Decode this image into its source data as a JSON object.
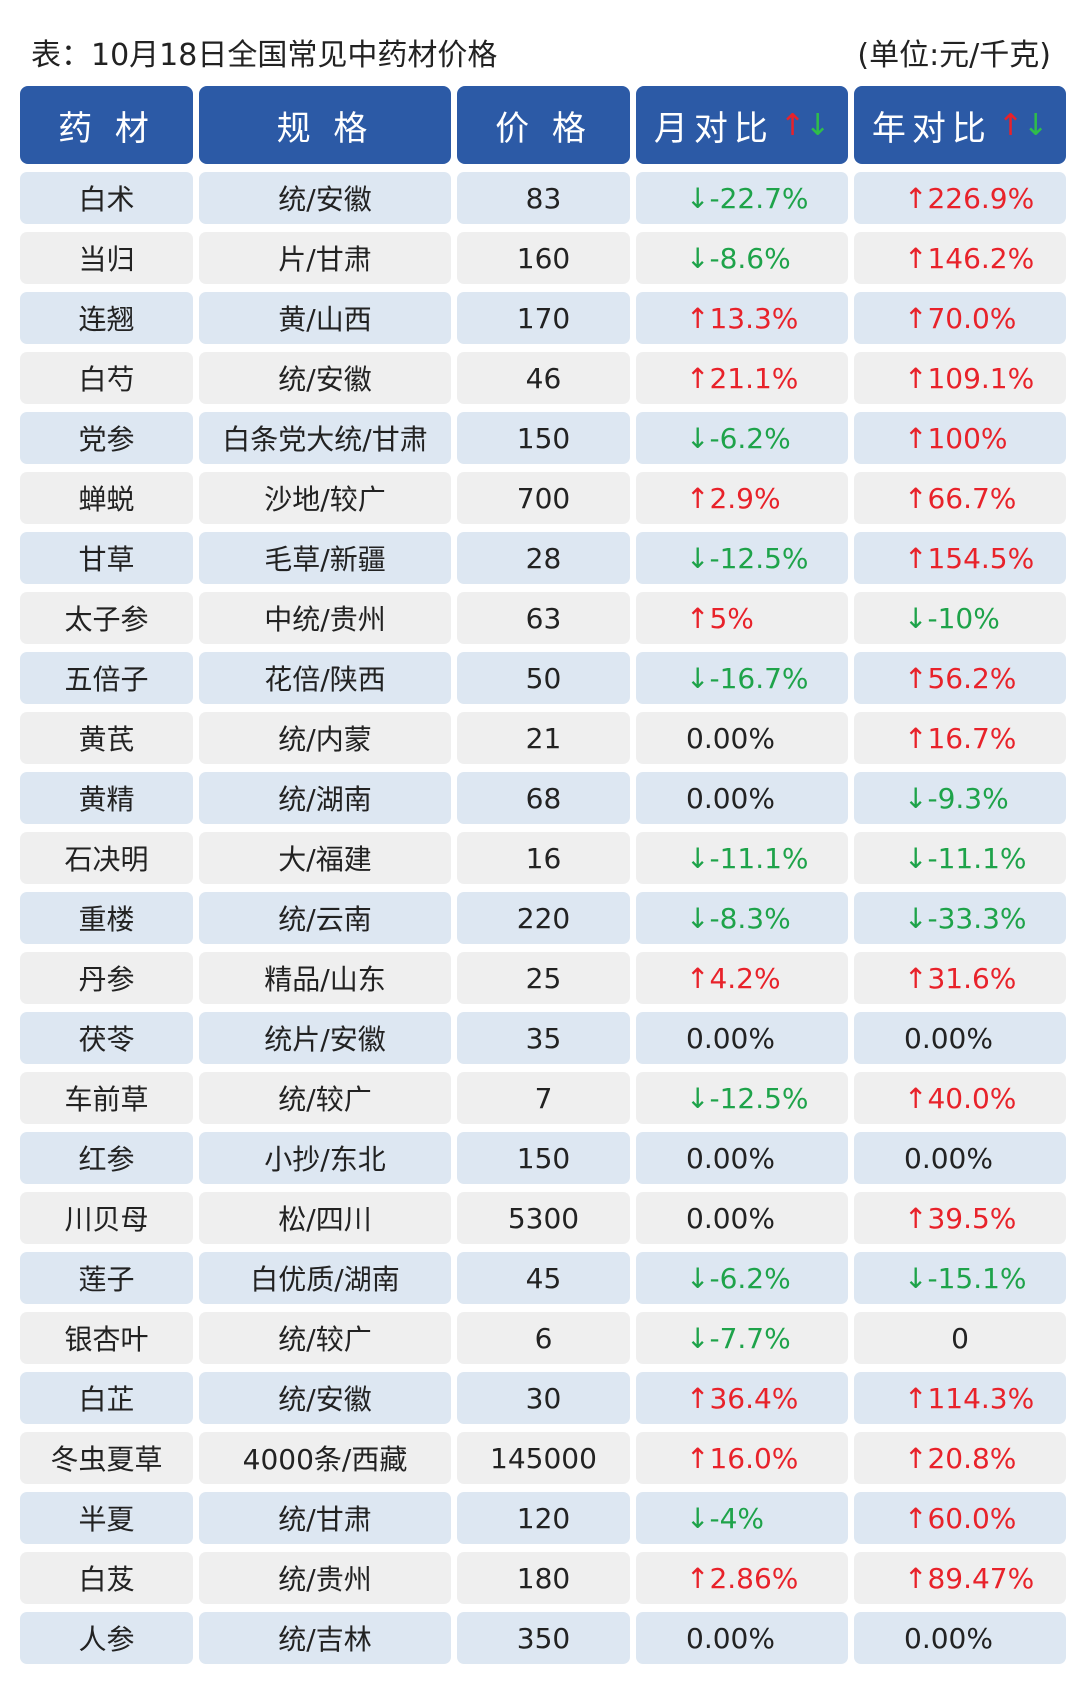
{
  "caption": {
    "title": "表：10月18日全国常见中药材价格",
    "unit": "(单位:元/千克)"
  },
  "headers": {
    "name": "药 材",
    "spec": "规 格",
    "price": "价 格",
    "month": "月对比",
    "year": "年对比",
    "up_arrow": "↑",
    "down_arrow": "↓"
  },
  "colors": {
    "header_bg": "#2c5aa6",
    "row_blue": "#dde7f2",
    "row_grey": "#efefef",
    "up": "#e8222a",
    "down": "#1ea34a"
  },
  "rows": [
    {
      "name": "白术",
      "spec": "统/安徽",
      "price": "83",
      "month": "↓-22.7%",
      "month_dir": "down",
      "year": "↑226.9%",
      "year_dir": "up"
    },
    {
      "name": "当归",
      "spec": "片/甘肃",
      "price": "160",
      "month": "↓-8.6%",
      "month_dir": "down",
      "year": "↑146.2%",
      "year_dir": "up"
    },
    {
      "name": "连翘",
      "spec": "黄/山西",
      "price": "170",
      "month": "↑13.3%",
      "month_dir": "up",
      "year": "↑70.0%",
      "year_dir": "up"
    },
    {
      "name": "白芍",
      "spec": "统/安徽",
      "price": "46",
      "month": "↑21.1%",
      "month_dir": "up",
      "year": "↑109.1%",
      "year_dir": "up"
    },
    {
      "name": "党参",
      "spec": "白条党大统/甘肃",
      "price": "150",
      "month": "↓-6.2%",
      "month_dir": "down",
      "year": "↑100%",
      "year_dir": "up"
    },
    {
      "name": "蝉蜕",
      "spec": "沙地/较广",
      "price": "700",
      "month": "↑2.9%",
      "month_dir": "up",
      "year": "↑66.7%",
      "year_dir": "up"
    },
    {
      "name": "甘草",
      "spec": "毛草/新疆",
      "price": "28",
      "month": "↓-12.5%",
      "month_dir": "down",
      "year": "↑154.5%",
      "year_dir": "up"
    },
    {
      "name": "太子参",
      "spec": "中统/贵州",
      "price": "63",
      "month": "↑5%",
      "month_dir": "up",
      "year": "↓-10%",
      "year_dir": "down"
    },
    {
      "name": "五倍子",
      "spec": "花倍/陕西",
      "price": "50",
      "month": "↓-16.7%",
      "month_dir": "down",
      "year": "↑56.2%",
      "year_dir": "up"
    },
    {
      "name": "黄芪",
      "spec": "统/内蒙",
      "price": "21",
      "month": "0.00%",
      "month_dir": "flat",
      "year": "↑16.7%",
      "year_dir": "up"
    },
    {
      "name": "黄精",
      "spec": "统/湖南",
      "price": "68",
      "month": "0.00%",
      "month_dir": "flat",
      "year": "↓-9.3%",
      "year_dir": "down"
    },
    {
      "name": "石决明",
      "spec": "大/福建",
      "price": "16",
      "month": "↓-11.1%",
      "month_dir": "down",
      "year": "↓-11.1%",
      "year_dir": "down"
    },
    {
      "name": "重楼",
      "spec": "统/云南",
      "price": "220",
      "month": "↓-8.3%",
      "month_dir": "down",
      "year": "↓-33.3%",
      "year_dir": "down"
    },
    {
      "name": "丹参",
      "spec": "精品/山东",
      "price": "25",
      "month": "↑4.2%",
      "month_dir": "up",
      "year": "↑31.6%",
      "year_dir": "up"
    },
    {
      "name": "茯苓",
      "spec": "统片/安徽",
      "price": "35",
      "month": "0.00%",
      "month_dir": "flat",
      "year": "0.00%",
      "year_dir": "flat"
    },
    {
      "name": "车前草",
      "spec": "统/较广",
      "price": "7",
      "month": "↓-12.5%",
      "month_dir": "down",
      "year": "↑40.0%",
      "year_dir": "up"
    },
    {
      "name": "红参",
      "spec": "小抄/东北",
      "price": "150",
      "month": "0.00%",
      "month_dir": "flat",
      "year": "0.00%",
      "year_dir": "flat"
    },
    {
      "name": "川贝母",
      "spec": "松/四川",
      "price": "5300",
      "month": "0.00%",
      "month_dir": "flat",
      "year": "↑39.5%",
      "year_dir": "up"
    },
    {
      "name": "莲子",
      "spec": "白优质/湖南",
      "price": "45",
      "month": "↓-6.2%",
      "month_dir": "down",
      "year": "↓-15.1%",
      "year_dir": "down"
    },
    {
      "name": "银杏叶",
      "spec": "统/较广",
      "price": "6",
      "month": "↓-7.7%",
      "month_dir": "down",
      "year": "0",
      "year_dir": "center"
    },
    {
      "name": "白芷",
      "spec": "统/安徽",
      "price": "30",
      "month": "↑36.4%",
      "month_dir": "up",
      "year": "↑114.3%",
      "year_dir": "up"
    },
    {
      "name": "冬虫夏草",
      "spec": "4000条/西藏",
      "price": "145000",
      "month": "↑16.0%",
      "month_dir": "up",
      "year": "↑20.8%",
      "year_dir": "up"
    },
    {
      "name": "半夏",
      "spec": "统/甘肃",
      "price": "120",
      "month": "↓-4%",
      "month_dir": "down",
      "year": "↑60.0%",
      "year_dir": "up"
    },
    {
      "name": "白芨",
      "spec": "统/贵州",
      "price": "180",
      "month": "↑2.86%",
      "month_dir": "up",
      "year": "↑89.47%",
      "year_dir": "up"
    },
    {
      "name": "人参",
      "spec": "统/吉林",
      "price": "350",
      "month": "0.00%",
      "month_dir": "flat",
      "year": "0.00%",
      "year_dir": "flat"
    }
  ]
}
